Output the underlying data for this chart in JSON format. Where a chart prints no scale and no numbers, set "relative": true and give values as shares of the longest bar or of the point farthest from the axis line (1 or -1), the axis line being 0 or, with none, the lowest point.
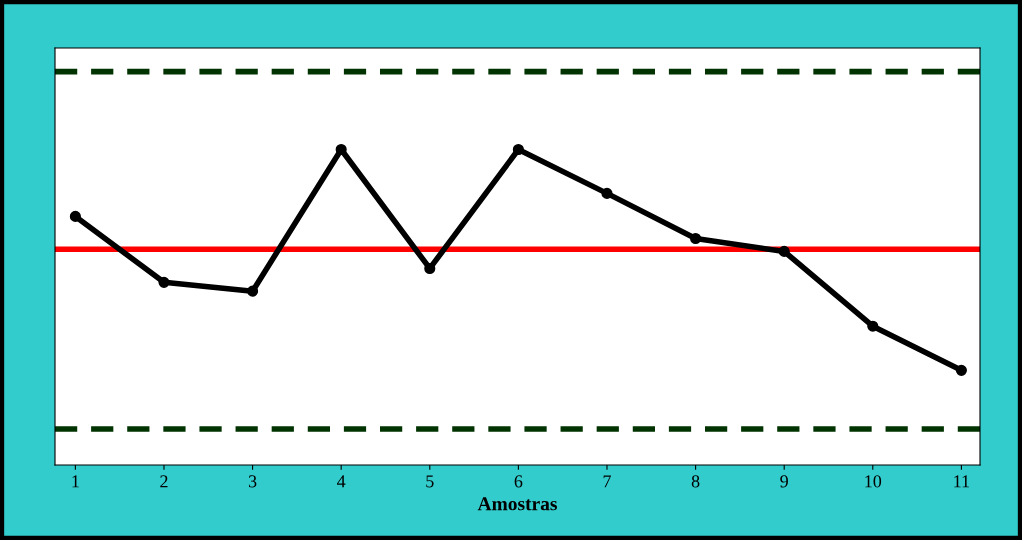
{
  "chart_data": {
    "type": "line",
    "xlabel": "Amostras",
    "relative": true,
    "tick_labels": "x",
    "x": [
      1,
      2,
      3,
      4,
      5,
      6,
      7,
      8,
      9,
      10,
      11
    ],
    "xlim": [
      0.77,
      11.21
    ],
    "xticks": [
      1,
      2,
      3,
      4,
      5,
      6,
      7,
      8,
      9,
      10,
      11
    ],
    "series": [
      {
        "color": "#000000",
        "values": [
          0.788,
          0.579,
          0.551,
          1,
          0.623,
          1,
          0.861,
          0.718,
          0.677,
          0.44,
          0.3
        ]
      }
    ],
    "marker": "circle",
    "line_style": "solid",
    "grid": false,
    "legend": false,
    "ref_lines": [
      {
        "axis": "y",
        "value": 1.247,
        "color": "#003300",
        "line_style": "dashed"
      },
      {
        "axis": "y",
        "value": 0.684,
        "color": "#ff0000",
        "line_style": "solid"
      },
      {
        "axis": "y",
        "value": 0.114,
        "color": "#003300",
        "line_style": "dashed"
      }
    ]
  }
}
